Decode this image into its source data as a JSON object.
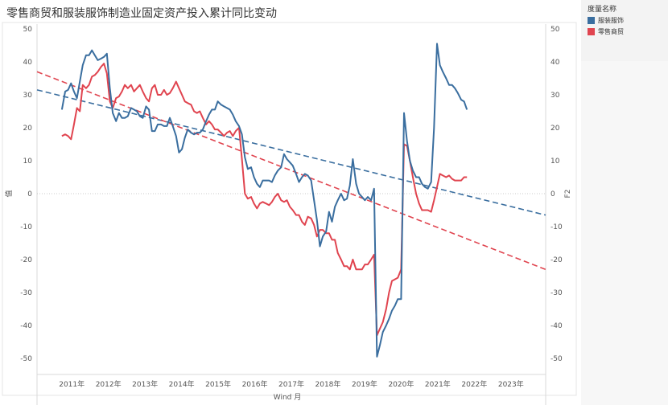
{
  "title": "零售商贸和服装服饰制造业固定资产投入累计同比变动",
  "legend": {
    "title": "度量名称",
    "items": [
      {
        "label": "服装服饰",
        "color": "#3a6e9f"
      },
      {
        "label": "零售商贸",
        "color": "#e0444f"
      }
    ]
  },
  "chart_data": {
    "type": "line",
    "xlabel": "Wind 月",
    "ylabel": "值",
    "ylabel_right": "F2",
    "ylim": [
      -50,
      50
    ],
    "yticks": [
      50,
      40,
      30,
      20,
      10,
      0,
      -10,
      -20,
      -30,
      -40,
      -50
    ],
    "xlim": [
      2010.2,
      2024.1
    ],
    "year_labels": [
      "2011年",
      "2012年",
      "2013年",
      "2014年",
      "2015年",
      "2016年",
      "2017年",
      "2018年",
      "2019年",
      "2020年",
      "2021年",
      "2022年",
      "2023年"
    ],
    "grid": "horizontal",
    "series": [
      {
        "name": "服装服饰",
        "color": "#3a6e9f",
        "points": [
          [
            2010.88,
            25.5
          ],
          [
            2010.97,
            31
          ],
          [
            2011.05,
            31.5
          ],
          [
            2011.13,
            33.5
          ],
          [
            2011.21,
            31
          ],
          [
            2011.29,
            29
          ],
          [
            2011.37,
            34
          ],
          [
            2011.45,
            39
          ],
          [
            2011.54,
            42
          ],
          [
            2011.62,
            42
          ],
          [
            2011.7,
            43.5
          ],
          [
            2011.78,
            42
          ],
          [
            2011.86,
            40.5
          ],
          [
            2011.95,
            41
          ],
          [
            2012.03,
            41.5
          ],
          [
            2012.11,
            42.5
          ],
          [
            2012.19,
            32
          ],
          [
            2012.27,
            24.5
          ],
          [
            2012.36,
            22
          ],
          [
            2012.44,
            24.5
          ],
          [
            2012.52,
            23
          ],
          [
            2012.6,
            23
          ],
          [
            2012.68,
            23.5
          ],
          [
            2012.77,
            26
          ],
          [
            2012.85,
            25.5
          ],
          [
            2012.93,
            25
          ],
          [
            2013.01,
            23.5
          ],
          [
            2013.09,
            23
          ],
          [
            2013.18,
            26.5
          ],
          [
            2013.26,
            25.5
          ],
          [
            2013.34,
            19
          ],
          [
            2013.42,
            19
          ],
          [
            2013.5,
            21
          ],
          [
            2013.59,
            21
          ],
          [
            2013.67,
            20.5
          ],
          [
            2013.75,
            20.5
          ],
          [
            2013.83,
            23
          ],
          [
            2013.91,
            20.5
          ],
          [
            2014.0,
            17.5
          ],
          [
            2014.08,
            12.5
          ],
          [
            2014.16,
            13.5
          ],
          [
            2014.24,
            17
          ],
          [
            2014.32,
            19.5
          ],
          [
            2014.41,
            18.5
          ],
          [
            2014.49,
            18
          ],
          [
            2014.57,
            18.5
          ],
          [
            2014.65,
            18.5
          ],
          [
            2014.73,
            19.5
          ],
          [
            2014.82,
            22
          ],
          [
            2014.9,
            24
          ],
          [
            2014.98,
            25.5
          ],
          [
            2015.06,
            25.5
          ],
          [
            2015.14,
            28
          ],
          [
            2015.23,
            27
          ],
          [
            2015.31,
            26.5
          ],
          [
            2015.39,
            26
          ],
          [
            2015.47,
            25.5
          ],
          [
            2015.55,
            24
          ],
          [
            2015.63,
            22
          ],
          [
            2015.72,
            20.5
          ],
          [
            2015.8,
            18
          ],
          [
            2015.88,
            11
          ],
          [
            2015.96,
            7.5
          ],
          [
            2016.05,
            8
          ],
          [
            2016.13,
            5
          ],
          [
            2016.21,
            3
          ],
          [
            2016.29,
            2
          ],
          [
            2016.37,
            4
          ],
          [
            2016.46,
            4
          ],
          [
            2016.54,
            4
          ],
          [
            2016.62,
            3.5
          ],
          [
            2016.7,
            5.5
          ],
          [
            2016.78,
            7
          ],
          [
            2016.87,
            8
          ],
          [
            2016.95,
            12
          ],
          [
            2017.03,
            10.5
          ],
          [
            2017.11,
            9.5
          ],
          [
            2017.19,
            8.5
          ],
          [
            2017.28,
            6
          ],
          [
            2017.36,
            3.5
          ],
          [
            2017.44,
            5
          ],
          [
            2017.52,
            6
          ],
          [
            2017.6,
            5.5
          ],
          [
            2017.69,
            4
          ],
          [
            2017.77,
            -2
          ],
          [
            2017.85,
            -8
          ],
          [
            2017.93,
            -16
          ],
          [
            2018.01,
            -13
          ],
          [
            2018.1,
            -11.5
          ],
          [
            2018.18,
            -5.5
          ],
          [
            2018.26,
            -8.5
          ],
          [
            2018.34,
            -4
          ],
          [
            2018.42,
            -2
          ],
          [
            2018.51,
            0
          ],
          [
            2018.59,
            -2
          ],
          [
            2018.67,
            -1.5
          ],
          [
            2018.75,
            2.5
          ],
          [
            2018.83,
            10.5
          ],
          [
            2018.92,
            3
          ],
          [
            2019.0,
            0
          ],
          [
            2019.08,
            -1
          ],
          [
            2019.16,
            -2
          ],
          [
            2019.24,
            -1
          ],
          [
            2019.33,
            -2
          ],
          [
            2019.41,
            1.5
          ],
          [
            2019.49,
            -49.5
          ],
          [
            2019.57,
            -46
          ],
          [
            2019.65,
            -42
          ],
          [
            2019.74,
            -40
          ],
          [
            2019.82,
            -38
          ],
          [
            2019.9,
            -35.5
          ],
          [
            2019.98,
            -34
          ],
          [
            2020.06,
            -32
          ],
          [
            2020.15,
            -32
          ],
          [
            2020.23,
            24.5
          ],
          [
            2020.31,
            16
          ],
          [
            2020.39,
            10
          ],
          [
            2020.47,
            7
          ],
          [
            2020.56,
            5
          ],
          [
            2020.64,
            5
          ],
          [
            2020.72,
            3
          ],
          [
            2020.8,
            2
          ],
          [
            2020.88,
            1.5
          ],
          [
            2020.97,
            3.5
          ],
          [
            2021.05,
            20
          ],
          [
            2021.13,
            45.5
          ],
          [
            2021.21,
            39
          ],
          [
            2021.29,
            37
          ],
          [
            2021.38,
            35
          ],
          [
            2021.46,
            33
          ],
          [
            2021.54,
            33
          ],
          [
            2021.62,
            32
          ],
          [
            2021.7,
            30.5
          ],
          [
            2021.79,
            28.5
          ],
          [
            2021.87,
            28
          ],
          [
            2021.95,
            25.5
          ]
        ]
      },
      {
        "name": "零售商贸",
        "color": "#e0444f",
        "points": [
          [
            2010.88,
            17.5
          ],
          [
            2010.97,
            18
          ],
          [
            2011.05,
            17.5
          ],
          [
            2011.13,
            16.5
          ],
          [
            2011.21,
            21
          ],
          [
            2011.29,
            26
          ],
          [
            2011.37,
            25
          ],
          [
            2011.45,
            33
          ],
          [
            2011.54,
            32
          ],
          [
            2011.62,
            33
          ],
          [
            2011.7,
            35.5
          ],
          [
            2011.78,
            36
          ],
          [
            2011.86,
            37
          ],
          [
            2011.95,
            38.5
          ],
          [
            2012.03,
            39.5
          ],
          [
            2012.11,
            36.5
          ],
          [
            2012.19,
            28
          ],
          [
            2012.27,
            26
          ],
          [
            2012.36,
            29
          ],
          [
            2012.44,
            29.5
          ],
          [
            2012.52,
            31
          ],
          [
            2012.6,
            33
          ],
          [
            2012.68,
            32
          ],
          [
            2012.77,
            33
          ],
          [
            2012.85,
            31
          ],
          [
            2012.93,
            32
          ],
          [
            2013.01,
            33
          ],
          [
            2013.09,
            31
          ],
          [
            2013.18,
            29
          ],
          [
            2013.26,
            28
          ],
          [
            2013.34,
            32
          ],
          [
            2013.42,
            33
          ],
          [
            2013.5,
            30
          ],
          [
            2013.59,
            30
          ],
          [
            2013.67,
            31.5
          ],
          [
            2013.75,
            30
          ],
          [
            2013.83,
            30.5
          ],
          [
            2013.91,
            32
          ],
          [
            2014.0,
            34
          ],
          [
            2014.08,
            32
          ],
          [
            2014.16,
            30
          ],
          [
            2014.24,
            28
          ],
          [
            2014.32,
            27.5
          ],
          [
            2014.41,
            27
          ],
          [
            2014.49,
            25
          ],
          [
            2014.57,
            24.5
          ],
          [
            2014.65,
            25
          ],
          [
            2014.73,
            23
          ],
          [
            2014.82,
            21
          ],
          [
            2014.9,
            22
          ],
          [
            2014.98,
            21
          ],
          [
            2015.06,
            19.5
          ],
          [
            2015.14,
            19.5
          ],
          [
            2015.23,
            18.5
          ],
          [
            2015.31,
            17.5
          ],
          [
            2015.39,
            18.5
          ],
          [
            2015.47,
            19
          ],
          [
            2015.55,
            17.5
          ],
          [
            2015.63,
            19
          ],
          [
            2015.72,
            20
          ],
          [
            2015.8,
            10.5
          ],
          [
            2015.88,
            0
          ],
          [
            2015.96,
            -1.5
          ],
          [
            2016.05,
            -1
          ],
          [
            2016.13,
            -3
          ],
          [
            2016.21,
            -4.5
          ],
          [
            2016.29,
            -3
          ],
          [
            2016.37,
            -2.5
          ],
          [
            2016.46,
            -3
          ],
          [
            2016.54,
            -3.5
          ],
          [
            2016.62,
            -2.5
          ],
          [
            2016.7,
            -1
          ],
          [
            2016.78,
            0
          ],
          [
            2016.87,
            -2
          ],
          [
            2016.95,
            -2.5
          ],
          [
            2017.03,
            -2
          ],
          [
            2017.11,
            -4
          ],
          [
            2017.19,
            -5
          ],
          [
            2017.28,
            -6.5
          ],
          [
            2017.36,
            -6.5
          ],
          [
            2017.44,
            -8.5
          ],
          [
            2017.52,
            -9.5
          ],
          [
            2017.6,
            -7
          ],
          [
            2017.69,
            -7.5
          ],
          [
            2017.77,
            -9.5
          ],
          [
            2017.85,
            -13
          ],
          [
            2017.93,
            -11
          ],
          [
            2018.01,
            -11
          ],
          [
            2018.1,
            -12
          ],
          [
            2018.18,
            -12
          ],
          [
            2018.26,
            -14
          ],
          [
            2018.34,
            -14
          ],
          [
            2018.42,
            -18
          ],
          [
            2018.51,
            -20
          ],
          [
            2018.59,
            -22
          ],
          [
            2018.67,
            -22
          ],
          [
            2018.75,
            -23
          ],
          [
            2018.83,
            -20
          ],
          [
            2018.92,
            -23
          ],
          [
            2019.0,
            -23
          ],
          [
            2019.08,
            -23
          ],
          [
            2019.16,
            -21.5
          ],
          [
            2019.24,
            -21.5
          ],
          [
            2019.33,
            -20
          ],
          [
            2019.41,
            -18.5
          ],
          [
            2019.49,
            -43
          ],
          [
            2019.57,
            -41
          ],
          [
            2019.65,
            -39
          ],
          [
            2019.74,
            -35
          ],
          [
            2019.82,
            -30
          ],
          [
            2019.9,
            -26.5
          ],
          [
            2019.98,
            -26
          ],
          [
            2020.06,
            -25.5
          ],
          [
            2020.15,
            -23
          ],
          [
            2020.23,
            15
          ],
          [
            2020.31,
            14.5
          ],
          [
            2020.39,
            10
          ],
          [
            2020.47,
            5
          ],
          [
            2020.56,
            0
          ],
          [
            2020.64,
            -3
          ],
          [
            2020.72,
            -5
          ],
          [
            2020.8,
            -5
          ],
          [
            2020.88,
            -5
          ],
          [
            2020.97,
            -5.5
          ],
          [
            2021.05,
            -2
          ],
          [
            2021.13,
            2
          ],
          [
            2021.21,
            6
          ],
          [
            2021.29,
            5.5
          ],
          [
            2021.38,
            5
          ],
          [
            2021.46,
            5.5
          ],
          [
            2021.54,
            4.5
          ],
          [
            2021.62,
            4
          ],
          [
            2021.7,
            4
          ],
          [
            2021.79,
            4
          ],
          [
            2021.87,
            5
          ],
          [
            2021.95,
            5
          ]
        ]
      }
    ],
    "trendlines": [
      {
        "series": "服装服饰",
        "color": "#3a6e9f",
        "points": [
          [
            2010.2,
            31.5
          ],
          [
            2024.1,
            -6.5
          ]
        ]
      },
      {
        "series": "零售商贸",
        "color": "#e0444f",
        "points": [
          [
            2010.2,
            37
          ],
          [
            2024.1,
            -23
          ]
        ]
      }
    ]
  }
}
